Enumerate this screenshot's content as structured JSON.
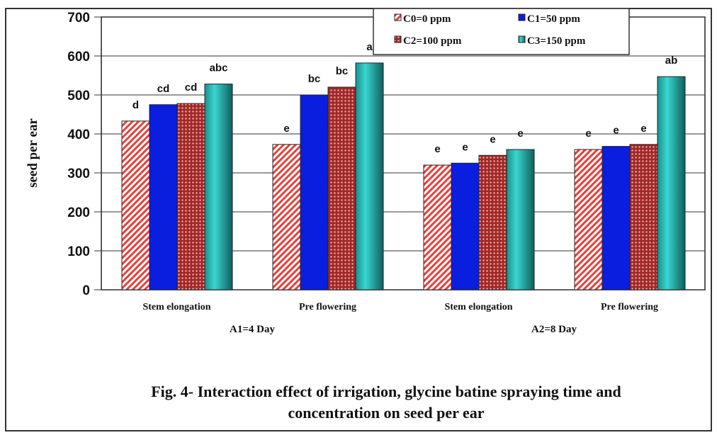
{
  "chart_data": {
    "type": "bar",
    "title": "Fig. 4- Interaction effect of irrigation, glycine batine spraying time and concentration on seed per ear",
    "caption_lines": [
      "Fig. 4- Interaction effect of irrigation, glycine batine spraying time and",
      "concentration on seed per ear"
    ],
    "xlabel": "",
    "ylabel": "seed per ear",
    "ylim": [
      0,
      700
    ],
    "yticks": [
      "0",
      "100",
      "200",
      "300",
      "400",
      "500",
      "600",
      "700"
    ],
    "grid": true,
    "legend_position": "top-right",
    "categories": [
      "Stem elongation",
      "Pre flowering",
      "Stem elongation",
      "Pre flowering"
    ],
    "groups": [
      "A1=4 Day",
      "A2=8 Day"
    ],
    "series": [
      {
        "name": "C0=0 ppm",
        "color": "#e8403a",
        "pattern": "diagonal",
        "values": [
          433,
          373,
          320,
          360
        ],
        "labels": [
          "d",
          "e",
          "e",
          "e"
        ]
      },
      {
        "name": "C1=50 ppm",
        "color": "#0a1ee0",
        "pattern": "solid",
        "values": [
          475,
          500,
          325,
          368
        ],
        "labels": [
          "cd",
          "bc",
          "e",
          "e"
        ]
      },
      {
        "name": "C2=100 ppm",
        "color": "#a02828",
        "pattern": "checker",
        "values": [
          478,
          520,
          345,
          373
        ],
        "labels": [
          "cd",
          "bc",
          "e",
          "e"
        ]
      },
      {
        "name": "C3=150 ppm",
        "color": "#2ec4c0",
        "pattern": "gradient",
        "values": [
          528,
          582,
          360,
          547
        ],
        "labels": [
          "abc",
          "a",
          "e",
          "ab"
        ]
      }
    ]
  }
}
